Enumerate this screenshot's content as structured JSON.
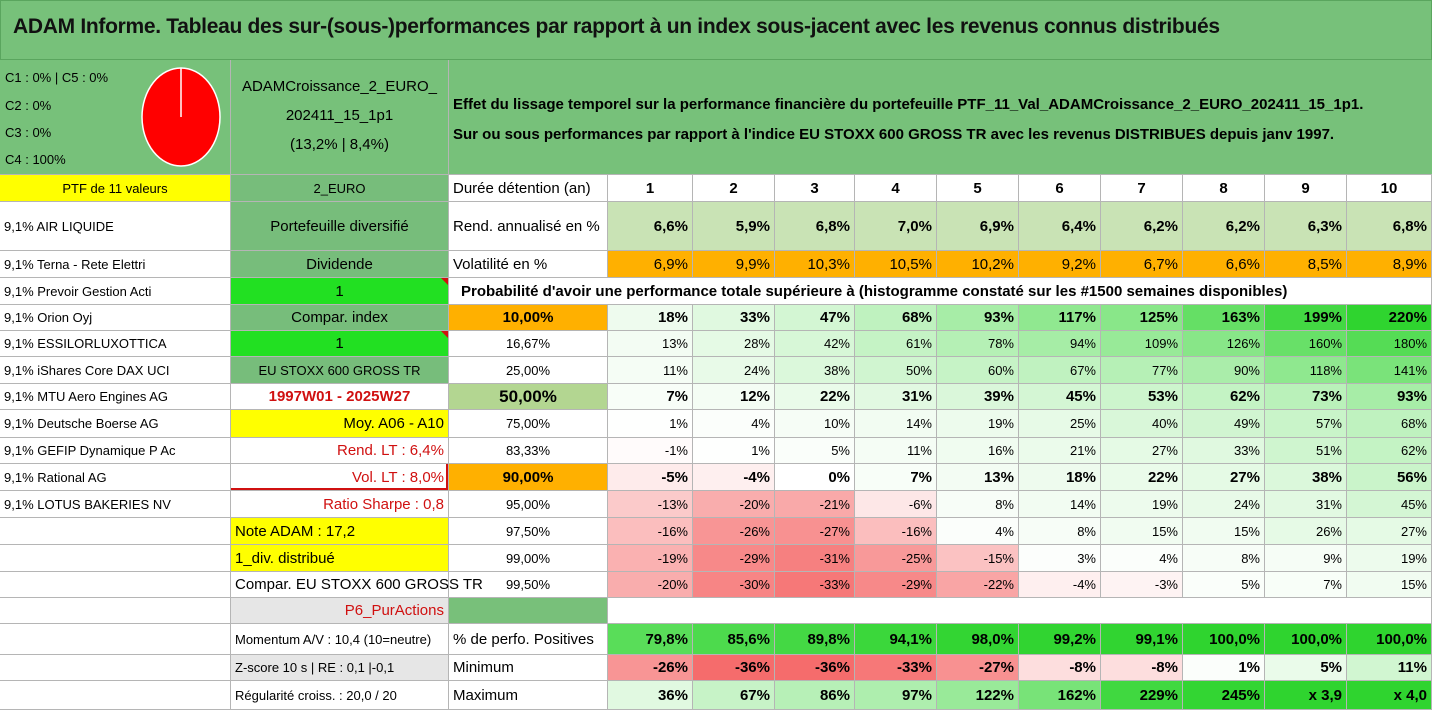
{
  "title": "ADAM Informe. Tableau des sur-(sous-)performances par rapport à un index sous-jacent avec les revenus connus distribués",
  "legend": [
    "C1 : 0% | C5 : 0%",
    "C2 : 0%",
    "C3 : 0%",
    "C4 : 100%"
  ],
  "pie": {
    "color": "#ff0000",
    "c4_share": 1.0
  },
  "fund": {
    "line1": "ADAMCroissance_2_EURO_",
    "line2": "202411_15_1p1",
    "line3": "(13,2% | 8,4%)"
  },
  "description": {
    "line1": "Effet du lissage temporel sur la performance financière du portefeuille PTF_11_Val_ADAMCroissance_2_EURO_202411_15_1p1.",
    "line2": "Sur ou sous performances par rapport à l'indice EU STOXX 600 GROSS TR avec les revenus DISTRIBUES depuis janv 1997."
  },
  "ptf_header": "PTF de 11 valeurs",
  "holdings": [
    "9,1% AIR LIQUIDE",
    "9,1% Terna - Rete Elettri",
    "9,1% Prevoir Gestion Acti",
    "9,1% Orion Oyj",
    "9,1% ESSILORLUXOTTICA",
    "9,1% iShares Core DAX UCI",
    "9,1% MTU Aero Engines AG",
    "9,1% Deutsche Boerse AG",
    "9,1% GEFIP Dynamique P Ac",
    "9,1% Rational AG",
    "9,1% LOTUS BAKERIES NV"
  ],
  "info_column": [
    "2_EURO",
    "Portefeuille diversifié",
    "Dividende",
    "1",
    "Compar. index",
    "1",
    "EU STOXX 600 GROSS TR",
    "1997W01 - 2025W27",
    "Moy. A06 - A10",
    "Rend. LT : 6,4%",
    "Vol. LT : 8,0%",
    "Ratio Sharpe : 0,8",
    "Note ADAM : 17,2",
    "1_div. distribué",
    "Compar. EU STOXX 600 GROSS TR",
    "P6_PurActions",
    "Momentum A/V : 10,4 (10=neutre)",
    "Z-score 10 s | RE : 0,1 |-0,1",
    "Régularité croiss. : 20,0 / 20"
  ],
  "header_label": "Durée détention (an)",
  "years": [
    "1",
    "2",
    "3",
    "4",
    "5",
    "6",
    "7",
    "8",
    "9",
    "10"
  ],
  "rend_label": "Rend. annualisé en %",
  "rend": [
    "6,6%",
    "5,9%",
    "6,8%",
    "7,0%",
    "6,9%",
    "6,4%",
    "6,2%",
    "6,2%",
    "6,3%",
    "6,8%"
  ],
  "vol_label": "Volatilité en %",
  "vol": [
    "6,9%",
    "9,9%",
    "10,3%",
    "10,5%",
    "10,2%",
    "9,2%",
    "6,7%",
    "6,6%",
    "8,5%",
    "8,9%"
  ],
  "prob_title": "Probabilité d'avoir une performance totale supérieure à (histogramme constaté sur les #1500 semaines disponibles)",
  "prob_rows": [
    {
      "p": "10,00%",
      "v": [
        "18%",
        "33%",
        "47%",
        "68%",
        "93%",
        "117%",
        "125%",
        "163%",
        "199%",
        "220%"
      ]
    },
    {
      "p": "16,67%",
      "v": [
        "13%",
        "28%",
        "42%",
        "61%",
        "78%",
        "94%",
        "109%",
        "126%",
        "160%",
        "180%"
      ]
    },
    {
      "p": "25,00%",
      "v": [
        "11%",
        "24%",
        "38%",
        "50%",
        "60%",
        "67%",
        "77%",
        "90%",
        "118%",
        "141%"
      ]
    },
    {
      "p": "50,00%",
      "v": [
        "7%",
        "12%",
        "22%",
        "31%",
        "39%",
        "45%",
        "53%",
        "62%",
        "73%",
        "93%"
      ]
    },
    {
      "p": "75,00%",
      "v": [
        "1%",
        "4%",
        "10%",
        "14%",
        "19%",
        "25%",
        "40%",
        "49%",
        "57%",
        "68%"
      ]
    },
    {
      "p": "83,33%",
      "v": [
        "-1%",
        "1%",
        "5%",
        "11%",
        "16%",
        "21%",
        "27%",
        "33%",
        "51%",
        "62%"
      ]
    },
    {
      "p": "90,00%",
      "v": [
        "-5%",
        "-4%",
        "0%",
        "7%",
        "13%",
        "18%",
        "22%",
        "27%",
        "38%",
        "56%"
      ]
    },
    {
      "p": "95,00%",
      "v": [
        "-13%",
        "-20%",
        "-21%",
        "-6%",
        "8%",
        "14%",
        "19%",
        "24%",
        "31%",
        "45%"
      ]
    },
    {
      "p": "97,50%",
      "v": [
        "-16%",
        "-26%",
        "-27%",
        "-16%",
        "4%",
        "8%",
        "15%",
        "15%",
        "26%",
        "27%"
      ]
    },
    {
      "p": "99,00%",
      "v": [
        "-19%",
        "-29%",
        "-31%",
        "-25%",
        "-15%",
        "3%",
        "4%",
        "8%",
        "9%",
        "19%"
      ]
    },
    {
      "p": "99,50%",
      "v": [
        "-20%",
        "-30%",
        "-33%",
        "-29%",
        "-22%",
        "-4%",
        "-3%",
        "5%",
        "7%",
        "15%"
      ]
    }
  ],
  "pos_label": "% de perfo. Positives",
  "pos": [
    "79,8%",
    "85,6%",
    "89,8%",
    "94,1%",
    "98,0%",
    "99,2%",
    "99,1%",
    "100,0%",
    "100,0%",
    "100,0%"
  ],
  "min_label": "Minimum",
  "min": [
    "-26%",
    "-36%",
    "-36%",
    "-33%",
    "-27%",
    "-8%",
    "-8%",
    "1%",
    "5%",
    "11%"
  ],
  "max_label": "Maximum",
  "max": [
    "36%",
    "67%",
    "86%",
    "97%",
    "122%",
    "162%",
    "229%",
    "245%",
    "x 3,9",
    "x 4,0"
  ],
  "colors": {
    "title_green": "#77c17a",
    "yellow": "#ffff00",
    "lime": "#22e022",
    "orange": "#ffb000",
    "label_red": "#d01010"
  }
}
